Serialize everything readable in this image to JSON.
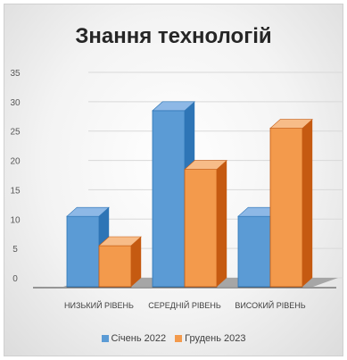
{
  "chart_data": {
    "type": "bar",
    "title": "Знання технологій",
    "categories": [
      "НИЗЬКИЙ РІВЕНЬ",
      "СЕРЕДНІЙ РІВЕНЬ",
      "ВИСОКИЙ РІВЕНЬ"
    ],
    "series": [
      {
        "name": "Січень 2022",
        "values": [
          12,
          30,
          12
        ],
        "color": "#5b9bd5",
        "side_color": "#2e75b6",
        "top_color": "#8db8e6"
      },
      {
        "name": "Грудень 2023",
        "values": [
          7,
          20,
          27
        ],
        "color": "#f39a4c",
        "side_color": "#c55a11",
        "top_color": "#f7bc88"
      }
    ],
    "yticks": [
      0,
      5,
      10,
      15,
      20,
      25,
      30,
      35
    ],
    "ylim": [
      0,
      35
    ],
    "grid": true,
    "legend_position": "bottom",
    "style": "3d-clustered-column"
  }
}
